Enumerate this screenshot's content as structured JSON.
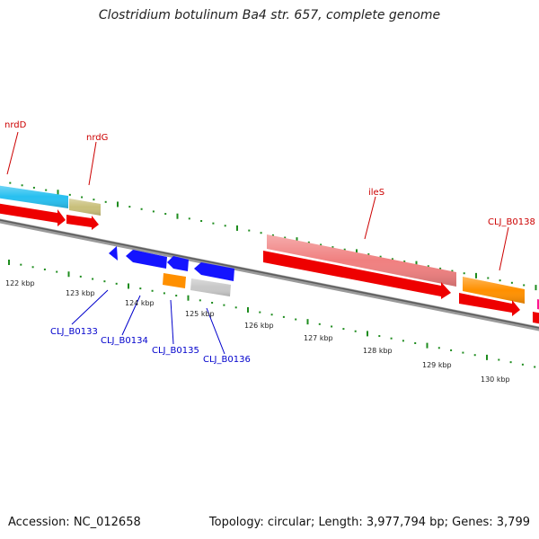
{
  "title": "Clostridium botulinum Ba4 str. 657, complete genome",
  "footer": {
    "accession": "Accession: NC_012658",
    "summary": "Topology: circular; Length: 3,977,794 bp; Genes: 3,799"
  },
  "colors": {
    "backbone": "#6e6e6e",
    "tick": "#1e8c1e",
    "forward_label": "#cc0000",
    "reverse_label": "#0000cc",
    "cds": "#ee0000",
    "rna_cyan": "#28c0f0",
    "khaki": "#c8bf7a",
    "pink": "#f08080",
    "orange": "#ff9000",
    "blue": "#1414ff",
    "grey": "#c8c8c8",
    "magenta": "#ff1493"
  },
  "scale_labels": [
    "122 kbp",
    "123 kbp",
    "124 kbp",
    "125 kbp",
    "126 kbp",
    "127 kbp",
    "128 kbp",
    "129 kbp",
    "130 kbp"
  ],
  "forward_genes": [
    {
      "label": "nrdD"
    },
    {
      "label": "nrdG"
    },
    {
      "label": "ileS"
    },
    {
      "label": "CLJ_B0138"
    }
  ],
  "reverse_genes": [
    {
      "label": "CLJ_B0133"
    },
    {
      "label": "CLJ_B0134"
    },
    {
      "label": "CLJ_B0135"
    },
    {
      "label": "CLJ_B0136"
    }
  ]
}
